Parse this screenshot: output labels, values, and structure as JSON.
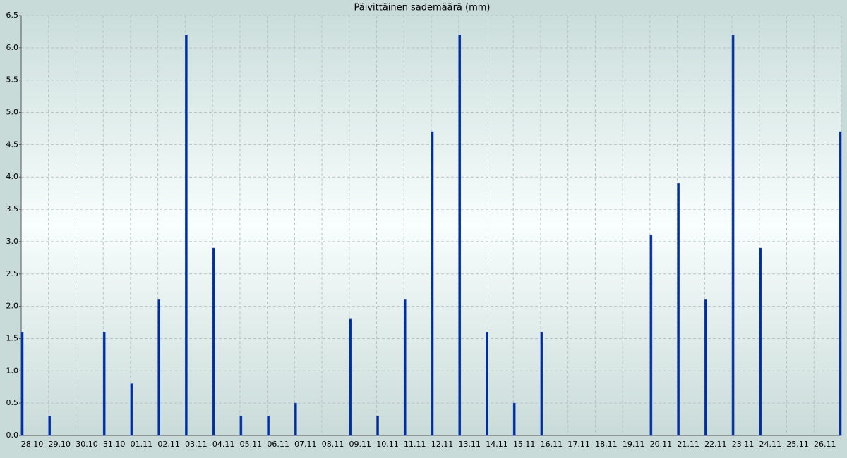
{
  "chart_data": {
    "type": "bar",
    "title": "Päivittäinen sademäärä (mm)",
    "categories": [
      "28.10",
      "29.10",
      "30.10",
      "31.10",
      "01.11",
      "02.11",
      "03.11",
      "04.11",
      "05.11",
      "06.11",
      "07.11",
      "08.11",
      "09.11",
      "10.11",
      "11.11",
      "12.11",
      "13.11",
      "14.11",
      "15.11",
      "16.11",
      "17.11",
      "18.11",
      "19.11",
      "20.11",
      "21.11",
      "22.11",
      "23.11",
      "24.11",
      "25.11",
      "26.11",
      null
    ],
    "values": [
      1.6,
      0.3,
      0,
      1.6,
      0.8,
      2.1,
      6.2,
      2.9,
      0.3,
      0.3,
      0.5,
      0,
      1.8,
      0.3,
      2.1,
      4.7,
      6.2,
      1.6,
      0.5,
      1.6,
      0,
      0,
      0,
      3.1,
      3.9,
      2.1,
      6.2,
      2.9,
      0,
      0,
      4.7
    ],
    "color": "#00308f",
    "ylim": [
      0,
      6.5
    ],
    "yticks": [
      {
        "value": 0,
        "label": "0.0"
      },
      {
        "value": 0.5,
        "label": "0.5"
      },
      {
        "value": 1,
        "label": "1.0"
      },
      {
        "value": 1.5,
        "label": "1.5"
      },
      {
        "value": 2,
        "label": "2.0"
      },
      {
        "value": 2.5,
        "label": "2.5"
      },
      {
        "value": 3,
        "label": "3.0"
      },
      {
        "value": 3.5,
        "label": "3.5"
      },
      {
        "value": 4,
        "label": "4.0"
      },
      {
        "value": 4.5,
        "label": "4.5"
      },
      {
        "value": 5,
        "label": "5.0"
      },
      {
        "value": 5.5,
        "label": "5.5"
      },
      {
        "value": 6,
        "label": "6.0"
      },
      {
        "value": 6.5,
        "label": "6.5"
      }
    ],
    "grid": true
  }
}
